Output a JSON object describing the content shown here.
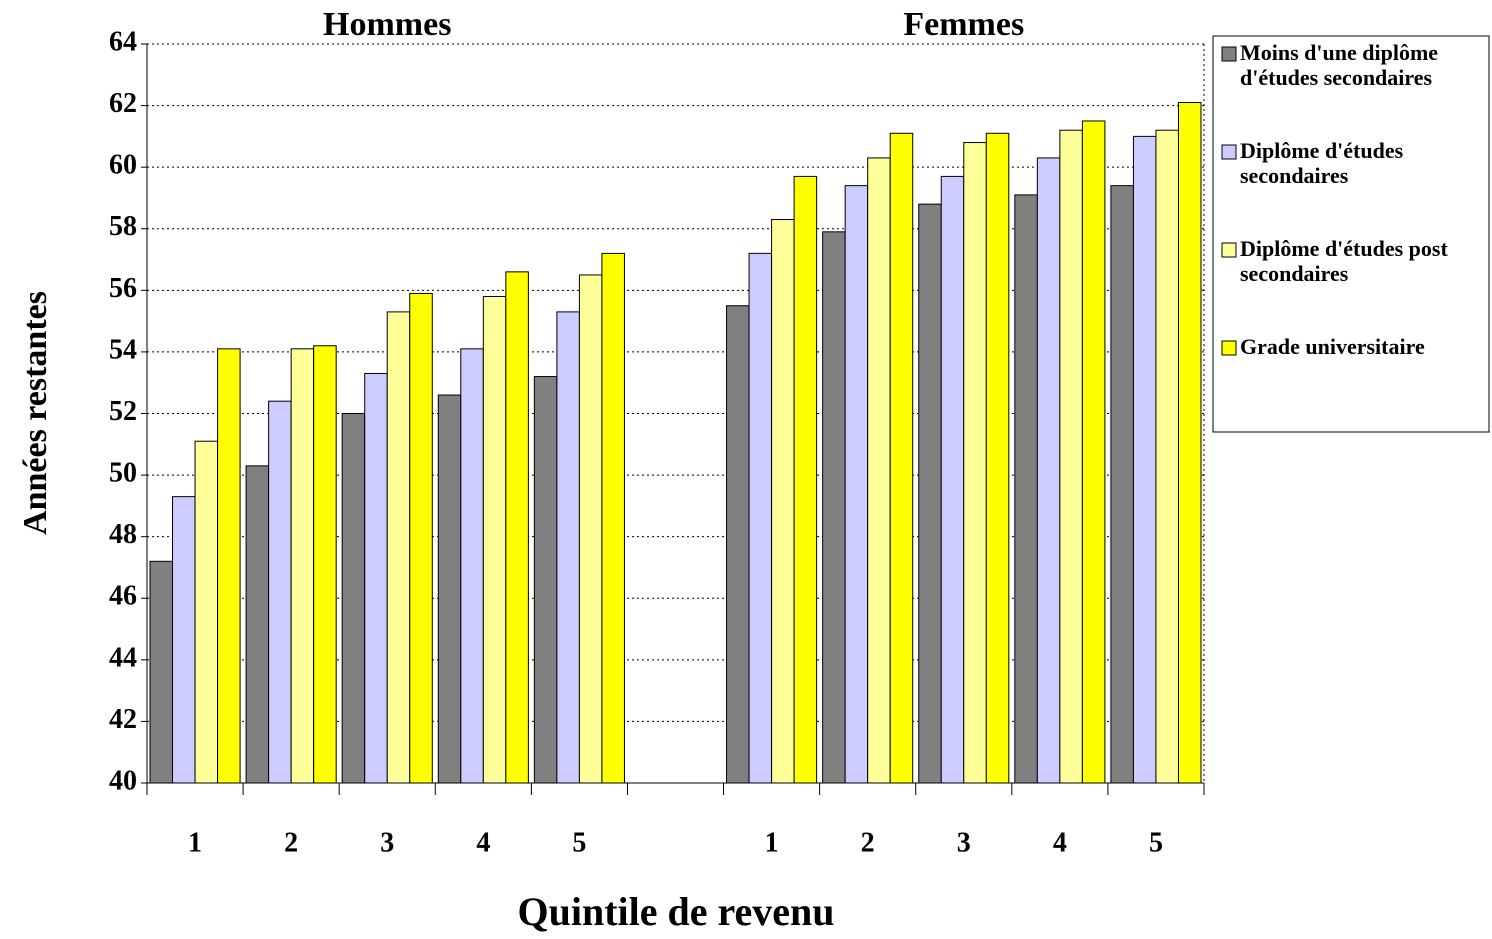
{
  "chart_data": {
    "type": "bar",
    "y_label": "Années restantes",
    "x_label": "Quintile de revenu",
    "annotations": [
      "Hommes",
      "Femmes"
    ],
    "categories": [
      "1",
      "2",
      "3",
      "4",
      "5",
      null,
      "1",
      "2",
      "3",
      "4",
      "5"
    ],
    "series": [
      {
        "name": "Moins d'une diplôme d'études secondaires",
        "color": "#808080",
        "values": [
          47.2,
          50.3,
          52.0,
          52.6,
          53.2,
          null,
          55.5,
          57.9,
          58.8,
          59.1,
          59.4
        ]
      },
      {
        "name": "Diplôme d'études secondaires",
        "color": "#ccccff",
        "values": [
          49.3,
          52.4,
          53.3,
          54.1,
          55.3,
          null,
          57.2,
          59.4,
          59.7,
          60.3,
          61.0
        ]
      },
      {
        "name": "Diplôme d'études post secondaires",
        "color": "#ffff99",
        "values": [
          51.1,
          54.1,
          55.3,
          55.8,
          56.5,
          null,
          58.3,
          60.3,
          60.8,
          61.2,
          61.2
        ]
      },
      {
        "name": "Grade universitaire",
        "color": "#ffff00",
        "values": [
          54.1,
          54.2,
          55.9,
          56.6,
          57.2,
          null,
          59.7,
          61.1,
          61.1,
          61.5,
          62.1
        ]
      }
    ],
    "ylim": [
      40,
      64
    ],
    "yticks": [
      40,
      42,
      44,
      46,
      48,
      50,
      52,
      54,
      56,
      58,
      60,
      62,
      64
    ],
    "grid": true
  }
}
